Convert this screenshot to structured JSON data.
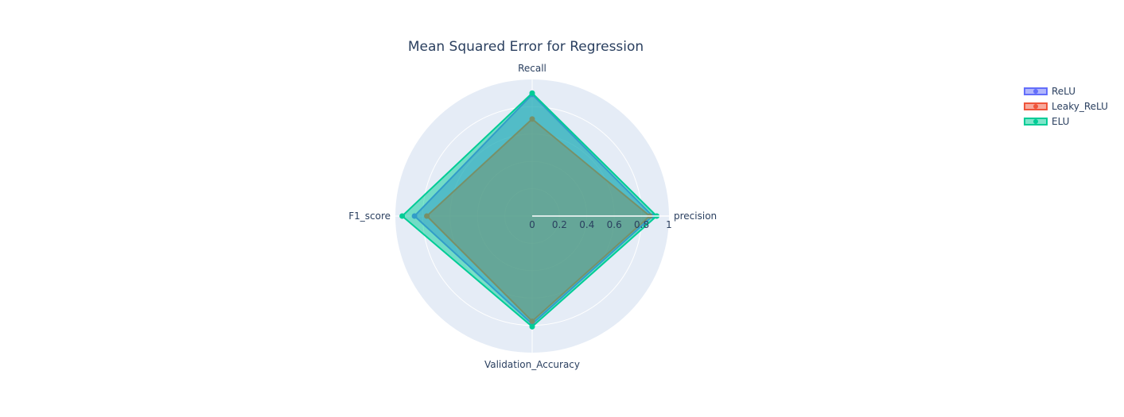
{
  "chart_data": {
    "type": "radar",
    "title": "Mean Squared Error for Regression",
    "axes": [
      "precision",
      "Recall",
      "F1_score",
      "Validation_Accuracy"
    ],
    "radial_range": [
      0,
      1
    ],
    "radial_ticks": [
      "0",
      "0.2",
      "0.4",
      "0.6",
      "0.8",
      "1"
    ],
    "radial_tick_values": [
      0,
      0.2,
      0.4,
      0.6,
      0.8,
      1
    ],
    "legend_position": "top-right",
    "series": [
      {
        "name": "ReLU",
        "values": [
          0.88,
          0.89,
          0.86,
          0.79
        ],
        "color": "#636efa"
      },
      {
        "name": "Leaky_ReLU",
        "values": [
          0.86,
          0.71,
          0.77,
          0.77
        ],
        "color": "#ef553b"
      },
      {
        "name": "ELU",
        "values": [
          0.91,
          0.9,
          0.95,
          0.81
        ],
        "color": "#00cc96"
      }
    ],
    "background_color": "#e5ecf6",
    "grid_color": "#ffffff"
  }
}
